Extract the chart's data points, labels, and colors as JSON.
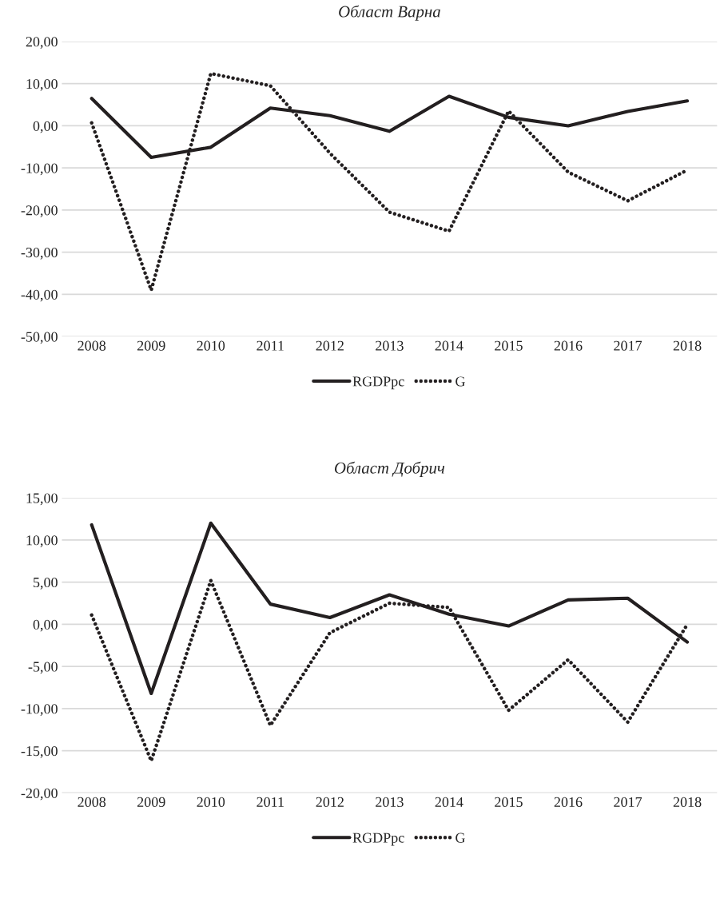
{
  "chart_data": [
    {
      "type": "line",
      "title": "Област Варна",
      "categories": [
        "2008",
        "2009",
        "2010",
        "2011",
        "2012",
        "2013",
        "2014",
        "2015",
        "2016",
        "2017",
        "2018"
      ],
      "series": [
        {
          "name": "RGDPpc",
          "color": "#231f20",
          "line_style": "solid",
          "values": [
            6.5,
            -7.5,
            -5.1,
            4.2,
            2.4,
            -1.3,
            7.0,
            2.0,
            0.0,
            3.4,
            5.9
          ]
        },
        {
          "name": "G",
          "color": "#231f20",
          "line_style": "dotted",
          "values": [
            0.7,
            -39.0,
            12.4,
            9.5,
            -6.5,
            -20.5,
            -25.0,
            3.5,
            -11.0,
            -17.8,
            -10.5
          ]
        }
      ],
      "ylim": [
        -50,
        20
      ],
      "yticks": [
        {
          "value": -50,
          "label": "-50,00"
        },
        {
          "value": -40,
          "label": "-40,00"
        },
        {
          "value": -30,
          "label": "-30,00"
        },
        {
          "value": -20,
          "label": "-20,00"
        },
        {
          "value": -10,
          "label": "-10,00"
        },
        {
          "value": 0,
          "label": "0,00"
        },
        {
          "value": 10,
          "label": "10,00"
        },
        {
          "value": 20,
          "label": "20,00"
        }
      ],
      "grid": "y",
      "legend": "bottom",
      "marker": "none"
    },
    {
      "type": "line",
      "title": "Област Добрич",
      "categories": [
        "2008",
        "2009",
        "2010",
        "2011",
        "2012",
        "2013",
        "2014",
        "2015",
        "2016",
        "2017",
        "2018"
      ],
      "series": [
        {
          "name": "RGDPpc",
          "color": "#231f20",
          "line_style": "solid",
          "values": [
            11.8,
            -8.2,
            12.0,
            2.4,
            0.8,
            3.5,
            1.2,
            -0.2,
            2.9,
            3.1,
            -2.1
          ]
        },
        {
          "name": "G",
          "color": "#231f20",
          "line_style": "dotted",
          "values": [
            1.1,
            -16.2,
            5.2,
            -12.0,
            -1.0,
            2.5,
            2.0,
            -10.2,
            -4.2,
            -11.6,
            0.0
          ]
        }
      ],
      "ylim": [
        -20,
        15
      ],
      "yticks": [
        {
          "value": -20,
          "label": "-20,00"
        },
        {
          "value": -15,
          "label": "-15,00"
        },
        {
          "value": -10,
          "label": "-10,00"
        },
        {
          "value": -5,
          "label": "-5,00"
        },
        {
          "value": 0,
          "label": "0,00"
        },
        {
          "value": 5,
          "label": "5,00"
        },
        {
          "value": 10,
          "label": "10,00"
        },
        {
          "value": 15,
          "label": "15,00"
        }
      ],
      "grid": "y",
      "legend": "bottom",
      "marker": "none"
    }
  ]
}
